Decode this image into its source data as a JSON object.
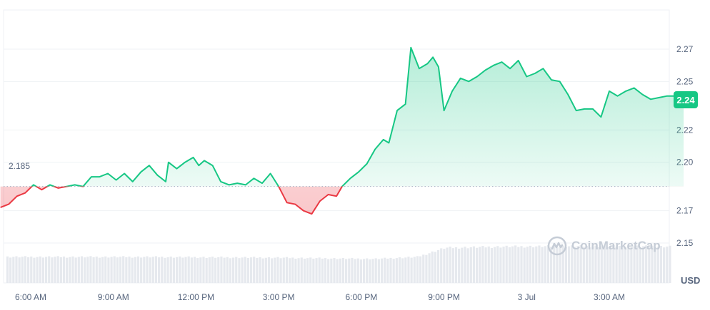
{
  "chart_data": {
    "type": "area",
    "reference_label": "2.185",
    "reference_value": 2.185,
    "current_price_label": "2.24",
    "currency": "USD",
    "watermark": "CoinMarketCap",
    "ylim": [
      2.13,
      2.285
    ],
    "y_ticks": [
      "2.27",
      "2.25",
      "2.22",
      "2.20",
      "2.17",
      "2.15"
    ],
    "y_tick_values": [
      2.27,
      2.25,
      2.22,
      2.2,
      2.17,
      2.15
    ],
    "x_ticks": [
      "6:00 AM",
      "9:00 AM",
      "12:00 PM",
      "3:00 PM",
      "6:00 PM",
      "9:00 PM",
      "3 Jul",
      "3:00 AM"
    ],
    "x_tick_hours": [
      6,
      9,
      12,
      15,
      18,
      21,
      24,
      27
    ],
    "xlim_hours": [
      4.9,
      29.7
    ],
    "colors": {
      "up": "#16c784",
      "down": "#ea3943",
      "grid": "#eff2f5"
    },
    "price_series": [
      [
        4.9,
        2.172
      ],
      [
        5.2,
        2.174
      ],
      [
        5.5,
        2.179
      ],
      [
        5.8,
        2.181
      ],
      [
        6.1,
        2.186
      ],
      [
        6.4,
        2.183
      ],
      [
        6.7,
        2.186
      ],
      [
        7.0,
        2.184
      ],
      [
        7.3,
        2.185
      ],
      [
        7.6,
        2.186
      ],
      [
        7.9,
        2.185
      ],
      [
        8.2,
        2.191
      ],
      [
        8.5,
        2.191
      ],
      [
        8.8,
        2.193
      ],
      [
        9.1,
        2.189
      ],
      [
        9.4,
        2.193
      ],
      [
        9.7,
        2.188
      ],
      [
        10.0,
        2.194
      ],
      [
        10.3,
        2.198
      ],
      [
        10.6,
        2.192
      ],
      [
        10.9,
        2.188
      ],
      [
        11.0,
        2.2
      ],
      [
        11.3,
        2.196
      ],
      [
        11.6,
        2.2
      ],
      [
        11.9,
        2.203
      ],
      [
        12.1,
        2.198
      ],
      [
        12.3,
        2.201
      ],
      [
        12.6,
        2.198
      ],
      [
        12.9,
        2.188
      ],
      [
        13.2,
        2.186
      ],
      [
        13.5,
        2.187
      ],
      [
        13.8,
        2.186
      ],
      [
        14.1,
        2.19
      ],
      [
        14.4,
        2.187
      ],
      [
        14.7,
        2.193
      ],
      [
        15.0,
        2.185
      ],
      [
        15.3,
        2.175
      ],
      [
        15.6,
        2.174
      ],
      [
        15.9,
        2.17
      ],
      [
        16.2,
        2.168
      ],
      [
        16.5,
        2.176
      ],
      [
        16.8,
        2.18
      ],
      [
        17.1,
        2.179
      ],
      [
        17.3,
        2.185
      ],
      [
        17.6,
        2.19
      ],
      [
        17.9,
        2.194
      ],
      [
        18.2,
        2.199
      ],
      [
        18.5,
        2.208
      ],
      [
        18.8,
        2.214
      ],
      [
        19.0,
        2.212
      ],
      [
        19.3,
        2.232
      ],
      [
        19.6,
        2.236
      ],
      [
        19.8,
        2.271
      ],
      [
        20.1,
        2.258
      ],
      [
        20.4,
        2.261
      ],
      [
        20.6,
        2.265
      ],
      [
        20.8,
        2.259
      ],
      [
        21.0,
        2.232
      ],
      [
        21.3,
        2.244
      ],
      [
        21.6,
        2.252
      ],
      [
        21.9,
        2.25
      ],
      [
        22.2,
        2.253
      ],
      [
        22.5,
        2.257
      ],
      [
        22.8,
        2.26
      ],
      [
        23.1,
        2.262
      ],
      [
        23.4,
        2.258
      ],
      [
        23.7,
        2.263
      ],
      [
        24.0,
        2.253
      ],
      [
        24.3,
        2.255
      ],
      [
        24.6,
        2.258
      ],
      [
        24.9,
        2.251
      ],
      [
        25.2,
        2.25
      ],
      [
        25.5,
        2.242
      ],
      [
        25.8,
        2.232
      ],
      [
        26.1,
        2.233
      ],
      [
        26.4,
        2.233
      ],
      [
        26.7,
        2.228
      ],
      [
        27.0,
        2.244
      ],
      [
        27.3,
        2.241
      ],
      [
        27.6,
        2.244
      ],
      [
        27.9,
        2.246
      ],
      [
        28.2,
        2.242
      ],
      [
        28.5,
        2.239
      ],
      [
        28.8,
        2.24
      ],
      [
        29.1,
        2.241
      ],
      [
        29.4,
        2.241
      ],
      [
        29.7,
        2.24
      ]
    ],
    "volume_series": [
      [
        4.9,
        0.66
      ],
      [
        10.0,
        0.66
      ],
      [
        15.0,
        0.64
      ],
      [
        17.0,
        0.62
      ],
      [
        18.5,
        0.61
      ],
      [
        20.0,
        0.66
      ],
      [
        21.0,
        0.89
      ],
      [
        23.0,
        0.92
      ],
      [
        25.0,
        0.93
      ],
      [
        27.0,
        0.93
      ],
      [
        29.7,
        0.92
      ]
    ]
  }
}
